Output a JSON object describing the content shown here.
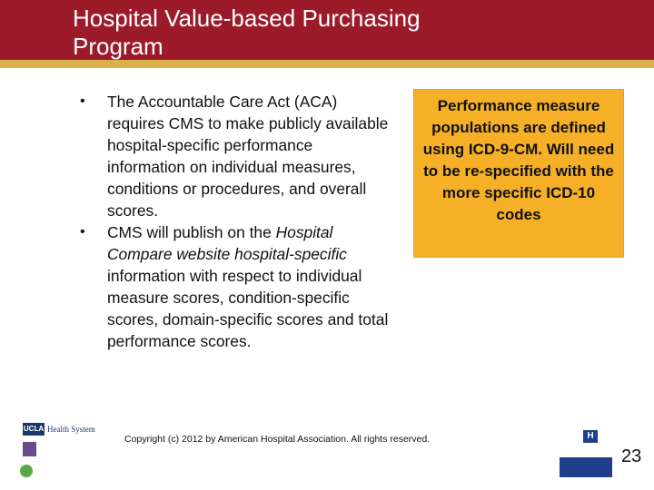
{
  "colors": {
    "accent": "#9b1b2a",
    "stripe": "#d9b24a",
    "callout": "#f5b027"
  },
  "slide": {
    "title_line1": "Hospital Value-based Purchasing",
    "title_line2": "Program"
  },
  "bullets": [
    {
      "text": "The Accountable Care Act (ACA) requires CMS to make publicly available hospital-specific performance information on individual measures, conditions or procedures, and overall scores."
    },
    {
      "text_before": "CMS will publish on the ",
      "text_italic": "Hospital Compare website hospital-specific",
      "text_after": " information with respect to individual measure scores, condition-specific scores, domain-specific scores and total performance scores."
    }
  ],
  "callout": {
    "text": "Performance measure populations are defined using ICD-9-CM.  Will need to be re-specified with the more specific ICD-10 codes"
  },
  "logos": {
    "ucla_mark": "UCLA",
    "ucla_rest": "Health System",
    "aha_mark": "H"
  },
  "footer": {
    "copyright": "Copyright (c) 2012 by  American Hospital Association. All rights reserved."
  },
  "page_number": "23"
}
